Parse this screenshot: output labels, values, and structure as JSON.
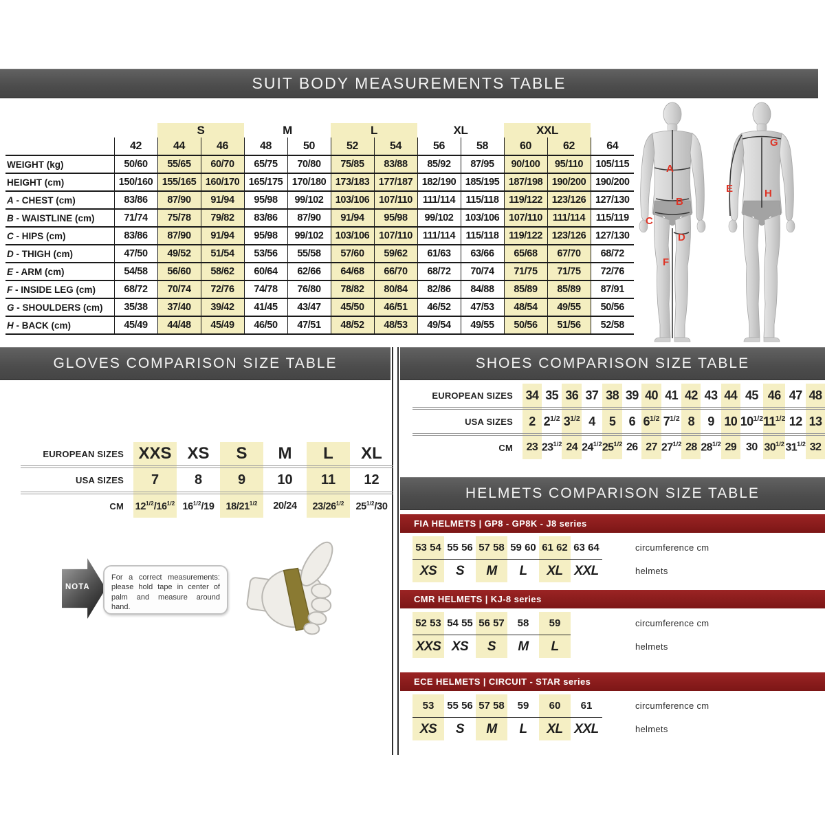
{
  "colors": {
    "bar_gray": "#4c4c4c",
    "accent_red": "#8e1f1f",
    "highlight_yellow": "#f4eec0",
    "figure_label_red": "#de3426"
  },
  "suit_table": {
    "title": "SUIT BODY MEASUREMENTS TABLE",
    "groups": [
      {
        "label": "",
        "cols": 1
      },
      {
        "label": "S",
        "cols": 2,
        "hl": true
      },
      {
        "label": "M",
        "cols": 2
      },
      {
        "label": "L",
        "cols": 2,
        "hl": true
      },
      {
        "label": "XL",
        "cols": 2
      },
      {
        "label": "XXL",
        "cols": 2,
        "hl": true
      },
      {
        "label": "",
        "cols": 1
      }
    ],
    "columns": [
      "42",
      "44",
      "46",
      "48",
      "50",
      "52",
      "54",
      "56",
      "58",
      "60",
      "62",
      "64"
    ],
    "highlight_cols": [
      1,
      2,
      5,
      6,
      9,
      10
    ],
    "rows": [
      {
        "letter": "",
        "label": "WEIGHT (kg)",
        "values": [
          "50/60",
          "55/65",
          "60/70",
          "65/75",
          "70/80",
          "75/85",
          "83/88",
          "85/92",
          "87/95",
          "90/100",
          "95/110",
          "105/115"
        ]
      },
      {
        "letter": "",
        "label": "HEIGHT (cm)",
        "values": [
          "150/160",
          "155/165",
          "160/170",
          "165/175",
          "170/180",
          "173/183",
          "177/187",
          "182/190",
          "185/195",
          "187/198",
          "190/200",
          "190/200"
        ]
      },
      {
        "letter": "A",
        "label": "CHEST (cm)",
        "values": [
          "83/86",
          "87/90",
          "91/94",
          "95/98",
          "99/102",
          "103/106",
          "107/110",
          "111/114",
          "115/118",
          "119/122",
          "123/126",
          "127/130"
        ]
      },
      {
        "letter": "B",
        "label": "WAISTLINE (cm)",
        "values": [
          "71/74",
          "75/78",
          "79/82",
          "83/86",
          "87/90",
          "91/94",
          "95/98",
          "99/102",
          "103/106",
          "107/110",
          "111/114",
          "115/119"
        ]
      },
      {
        "letter": "C",
        "label": "HIPS (cm)",
        "values": [
          "83/86",
          "87/90",
          "91/94",
          "95/98",
          "99/102",
          "103/106",
          "107/110",
          "111/114",
          "115/118",
          "119/122",
          "123/126",
          "127/130"
        ]
      },
      {
        "letter": "D",
        "label": "THIGH (cm)",
        "values": [
          "47/50",
          "49/52",
          "51/54",
          "53/56",
          "55/58",
          "57/60",
          "59/62",
          "61/63",
          "63/66",
          "65/68",
          "67/70",
          "68/72"
        ]
      },
      {
        "letter": "E",
        "label": "ARM (cm)",
        "values": [
          "54/58",
          "56/60",
          "58/62",
          "60/64",
          "62/66",
          "64/68",
          "66/70",
          "68/72",
          "70/74",
          "71/75",
          "71/75",
          "72/76"
        ]
      },
      {
        "letter": "F",
        "label": "INSIDE LEG (cm)",
        "values": [
          "68/72",
          "70/74",
          "72/76",
          "74/78",
          "76/80",
          "78/82",
          "80/84",
          "82/86",
          "84/88",
          "85/89",
          "85/89",
          "87/91"
        ]
      },
      {
        "letter": "G",
        "label": "SHOULDERS (cm)",
        "values": [
          "35/38",
          "37/40",
          "39/42",
          "41/45",
          "43/47",
          "45/50",
          "46/51",
          "46/52",
          "47/53",
          "48/54",
          "49/55",
          "50/56"
        ]
      },
      {
        "letter": "H",
        "label": "BACK (cm)",
        "values": [
          "45/49",
          "44/48",
          "45/49",
          "46/50",
          "47/51",
          "48/52",
          "48/53",
          "49/54",
          "49/55",
          "50/56",
          "51/56",
          "52/58"
        ]
      }
    ],
    "figure": {
      "front_labels": [
        "A",
        "B",
        "C",
        "D",
        "F"
      ],
      "back_labels": [
        "G",
        "E",
        "H"
      ]
    }
  },
  "gloves": {
    "title": "GLOVES COMPARISON SIZE TABLE",
    "highlight_cols": [
      0,
      2,
      4
    ],
    "rows": [
      {
        "label": "EUROPEAN SIZES",
        "values": [
          "XXS",
          "XS",
          "S",
          "M",
          "L",
          "XL"
        ]
      },
      {
        "label": "USA SIZES",
        "values": [
          "7",
          "8",
          "9",
          "10",
          "11",
          "12"
        ]
      },
      {
        "label": "CM",
        "values": [
          "12½/16½",
          "16½/19",
          "18/21½",
          "20/24",
          "23/26½",
          "25½/30"
        ]
      }
    ],
    "note": {
      "badge": "NOTA",
      "text": "For a correct measurements: please hold tape in center of palm and measure around hand."
    }
  },
  "shoes": {
    "title": "SHOES COMPARISON SIZE TABLE",
    "highlight_cols": [
      0,
      2,
      4,
      6,
      8,
      10,
      12,
      14
    ],
    "rows": [
      {
        "label": "EUROPEAN SIZES",
        "values": [
          "34",
          "35",
          "36",
          "37",
          "38",
          "39",
          "40",
          "41",
          "42",
          "43",
          "44",
          "45",
          "46",
          "47",
          "48"
        ]
      },
      {
        "label": "USA SIZES",
        "values": [
          "2",
          "2½",
          "3½",
          "4",
          "5",
          "6",
          "6½",
          "7½",
          "8",
          "9",
          "10",
          "10½",
          "11½",
          "12",
          "13"
        ]
      },
      {
        "label": "CM",
        "values": [
          "23",
          "23½",
          "24",
          "24½",
          "25½",
          "26",
          "27",
          "27½",
          "28",
          "28½",
          "29",
          "30",
          "30½",
          "31½",
          "32"
        ]
      }
    ]
  },
  "helmets": {
    "title": "HELMETS COMPARISON SIZE TABLE",
    "circ_label": "circumference cm",
    "size_label": "helmets",
    "tables": [
      {
        "series": "FIA HELMETS | GP8 - GP8K - J8 series",
        "groups": [
          {
            "size": "XS",
            "circ": [
              "53",
              "54"
            ],
            "hl": true
          },
          {
            "size": "S",
            "circ": [
              "55",
              "56"
            ]
          },
          {
            "size": "M",
            "circ": [
              "57",
              "58"
            ],
            "hl": true
          },
          {
            "size": "L",
            "circ": [
              "59",
              "60"
            ]
          },
          {
            "size": "XL",
            "circ": [
              "61",
              "62"
            ],
            "hl": true
          },
          {
            "size": "XXL",
            "circ": [
              "63",
              "64"
            ]
          }
        ]
      },
      {
        "series": "CMR HELMETS | KJ-8 series",
        "groups": [
          {
            "size": "XXS",
            "circ": [
              "52",
              "53"
            ],
            "hl": true
          },
          {
            "size": "XS",
            "circ": [
              "54",
              "55"
            ]
          },
          {
            "size": "S",
            "circ": [
              "56",
              "57"
            ],
            "hl": true
          },
          {
            "size": "M",
            "circ": [
              "58"
            ]
          },
          {
            "size": "L",
            "circ": [
              "59"
            ],
            "hl": true
          }
        ]
      },
      {
        "series": "ECE HELMETS | CIRCUIT - STAR series",
        "groups": [
          {
            "size": "XS",
            "circ": [
              "53"
            ],
            "hl": true
          },
          {
            "size": "S",
            "circ": [
              "55",
              "56"
            ]
          },
          {
            "size": "M",
            "circ": [
              "57",
              "58"
            ],
            "hl": true
          },
          {
            "size": "L",
            "circ": [
              "59"
            ]
          },
          {
            "size": "XL",
            "circ": [
              "60"
            ],
            "hl": true
          },
          {
            "size": "XXL",
            "circ": [
              "61"
            ]
          }
        ]
      }
    ]
  }
}
